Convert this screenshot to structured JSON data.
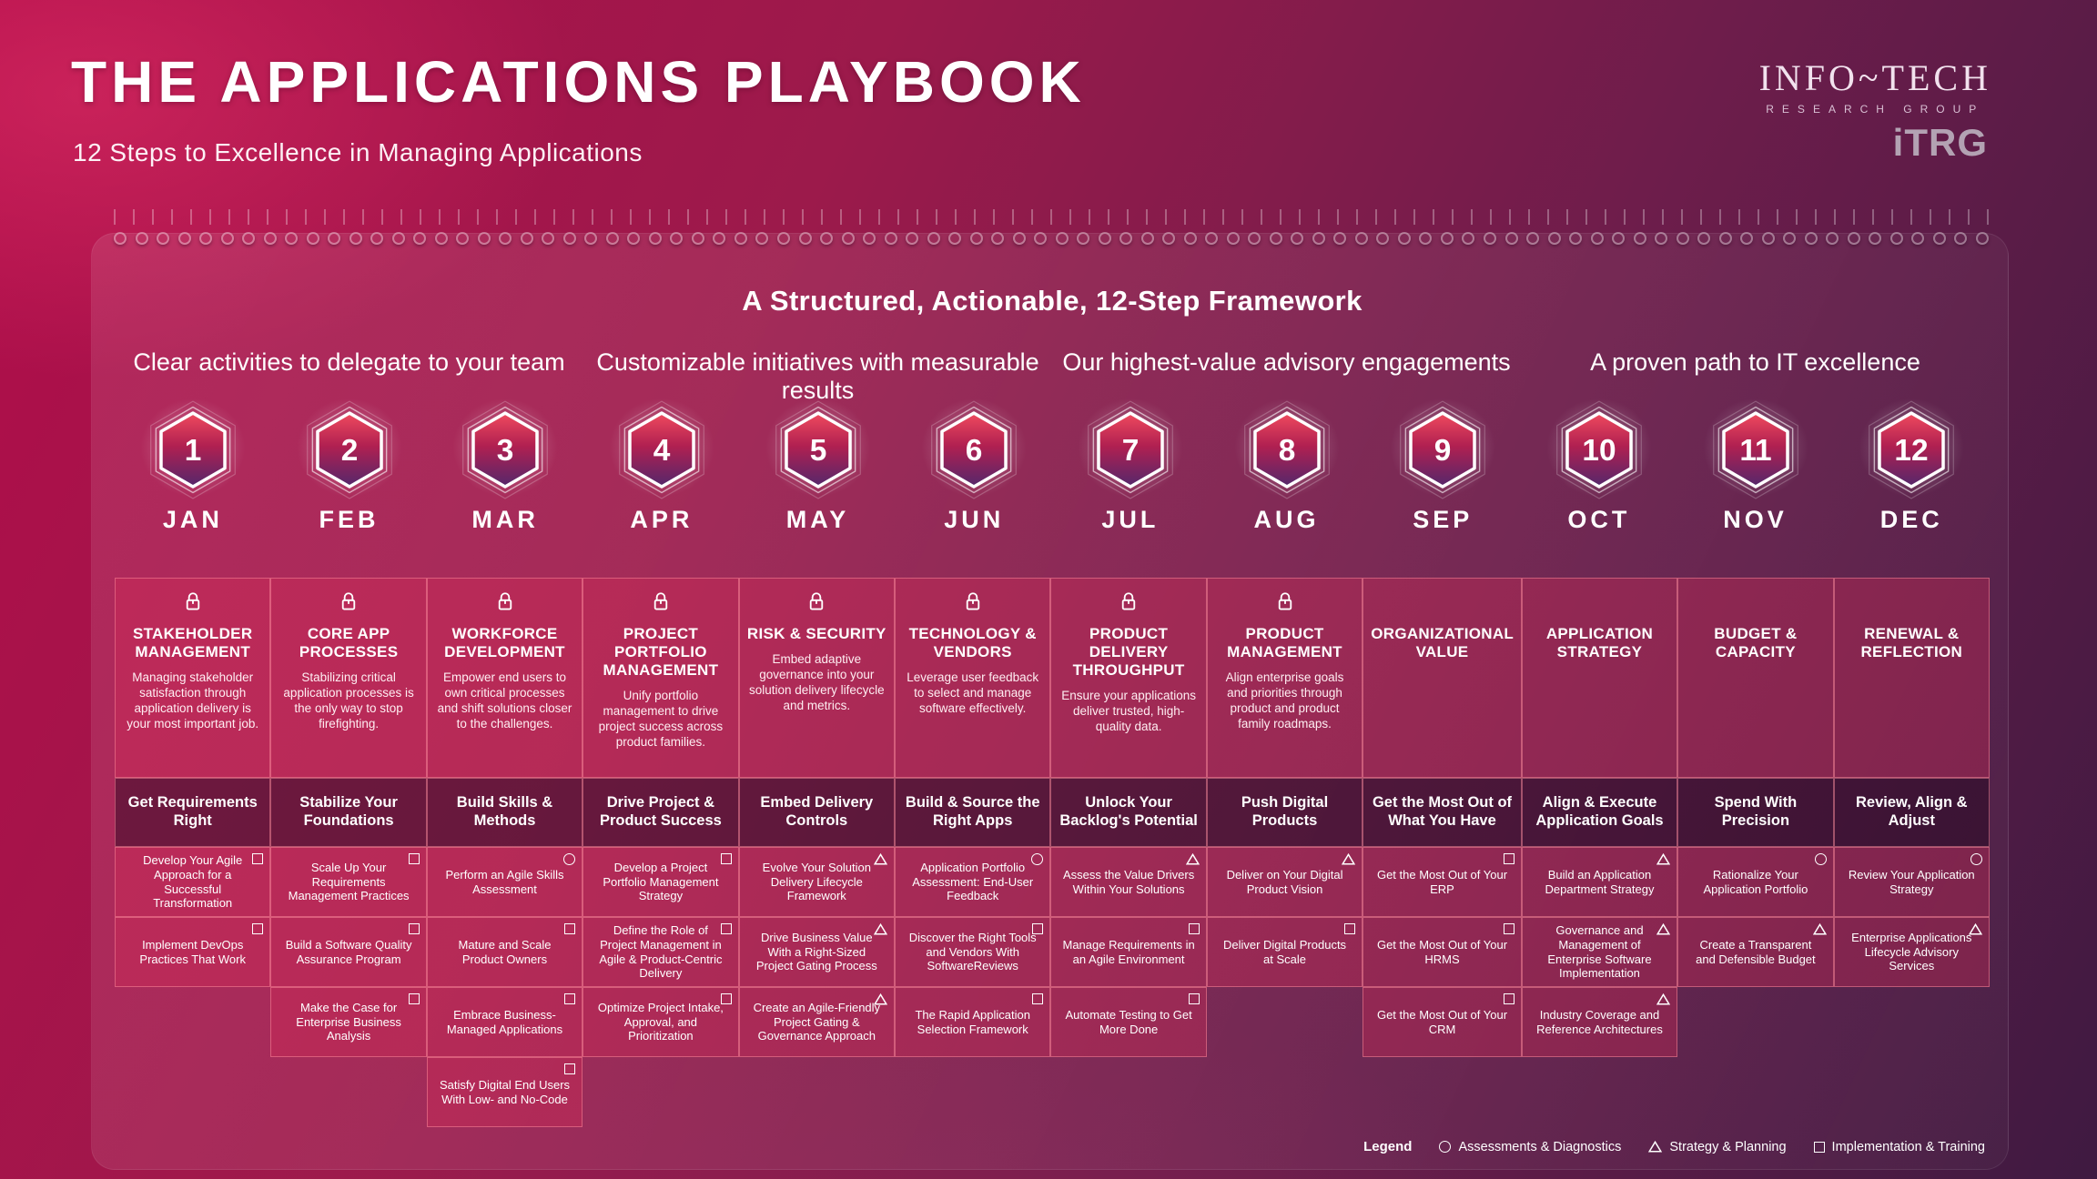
{
  "header": {
    "title": "THE APPLICATIONS PLAYBOOK",
    "subtitle": "12 Steps to Excellence in Managing Applications",
    "logo": {
      "name": "INFO~TECH",
      "sub": "RESEARCH GROUP",
      "abbr": "iTRG"
    }
  },
  "framework": {
    "title": "A Structured, Actionable, 12-Step Framework",
    "group_titles": [
      "Clear activities to delegate to your team",
      "Customizable initiatives with measurable results",
      "Our highest-value advisory engagements",
      "A proven path to IT excellence"
    ],
    "columns": [
      {
        "num": "1",
        "month": "JAN",
        "category": {
          "locked": true,
          "title": "STAKEHOLDER MANAGEMENT",
          "desc": "Managing stakeholder satisfaction through application delivery is your most important job."
        },
        "phase": "Get Requirements Right",
        "activities": [
          {
            "icon": "square",
            "text": "Develop Your Agile Approach for a Successful Transformation"
          },
          {
            "icon": "square",
            "text": "Implement DevOps Practices That Work"
          },
          null,
          null
        ]
      },
      {
        "num": "2",
        "month": "FEB",
        "category": {
          "locked": true,
          "title": "CORE APP PROCESSES",
          "desc": "Stabilizing critical application processes is the only way to stop firefighting."
        },
        "phase": "Stabilize Your Foundations",
        "activities": [
          {
            "icon": "square",
            "text": "Scale Up Your Requirements Management Practices"
          },
          {
            "icon": "square",
            "text": "Build a Software Quality Assurance Program"
          },
          {
            "icon": "square",
            "text": "Make the Case for Enterprise Business Analysis"
          },
          null
        ]
      },
      {
        "num": "3",
        "month": "MAR",
        "category": {
          "locked": true,
          "title": "WORKFORCE DEVELOPMENT",
          "desc": "Empower end users to own critical processes and shift solutions closer to the challenges."
        },
        "phase": "Build Skills & Methods",
        "activities": [
          {
            "icon": "circle",
            "text": "Perform an Agile Skills Assessment"
          },
          {
            "icon": "square",
            "text": "Mature and Scale Product Owners"
          },
          {
            "icon": "square",
            "text": "Embrace Business-Managed Applications"
          },
          {
            "icon": "square",
            "text": "Satisfy Digital End Users With Low- and No-Code"
          }
        ]
      },
      {
        "num": "4",
        "month": "APR",
        "category": {
          "locked": true,
          "title": "PROJECT PORTFOLIO MANAGEMENT",
          "desc": "Unify portfolio management to drive project success across product families."
        },
        "phase": "Drive Project & Product Success",
        "activities": [
          {
            "icon": "square",
            "text": "Develop a Project Portfolio Management Strategy"
          },
          {
            "icon": "square",
            "text": "Define the Role of Project Management in Agile & Product-Centric Delivery"
          },
          {
            "icon": "square",
            "text": "Optimize Project Intake, Approval, and Prioritization"
          },
          null
        ]
      },
      {
        "num": "5",
        "month": "MAY",
        "category": {
          "locked": true,
          "title": "RISK & SECURITY",
          "desc": "Embed adaptive governance into your solution delivery lifecycle and metrics."
        },
        "phase": "Embed Delivery Controls",
        "activities": [
          {
            "icon": "triangle",
            "text": "Evolve Your Solution Delivery Lifecycle Framework"
          },
          {
            "icon": "triangle",
            "text": "Drive Business Value With a Right-Sized Project Gating Process"
          },
          {
            "icon": "triangle",
            "text": "Create an Agile-Friendly Project Gating & Governance Approach"
          },
          null
        ]
      },
      {
        "num": "6",
        "month": "JUN",
        "category": {
          "locked": true,
          "title": "TECHNOLOGY & VENDORS",
          "desc": "Leverage user feedback to select and manage software effectively."
        },
        "phase": "Build & Source the Right Apps",
        "activities": [
          {
            "icon": "circle",
            "text": "Application Portfolio Assessment: End-User Feedback"
          },
          {
            "icon": "square",
            "text": "Discover the Right Tools and Vendors With SoftwareReviews"
          },
          {
            "icon": "square",
            "text": "The Rapid Application Selection Framework"
          },
          null
        ]
      },
      {
        "num": "7",
        "month": "JUL",
        "category": {
          "locked": true,
          "title": "PRODUCT DELIVERY THROUGHPUT",
          "desc": "Ensure your applications deliver trusted, high-quality data."
        },
        "phase": "Unlock Your Backlog's Potential",
        "activities": [
          {
            "icon": "triangle",
            "text": "Assess the Value Drivers Within Your Solutions"
          },
          {
            "icon": "square",
            "text": "Manage Requirements in an Agile Environment"
          },
          {
            "icon": "square",
            "text": "Automate Testing to Get More Done"
          },
          null
        ]
      },
      {
        "num": "8",
        "month": "AUG",
        "category": {
          "locked": true,
          "title": "PRODUCT MANAGEMENT",
          "desc": "Align enterprise goals and priorities through product and product family roadmaps."
        },
        "phase": "Push Digital Products",
        "activities": [
          {
            "icon": "triangle",
            "text": "Deliver on Your Digital Product Vision"
          },
          {
            "icon": "square",
            "text": "Deliver Digital Products at Scale"
          },
          null,
          null
        ]
      },
      {
        "num": "9",
        "month": "SEP",
        "category": {
          "locked": false,
          "title": "ORGANIZATIONAL VALUE",
          "desc": ""
        },
        "phase": "Get the Most Out of What You Have",
        "activities": [
          {
            "icon": "square",
            "text": "Get the Most Out of Your ERP"
          },
          {
            "icon": "square",
            "text": "Get the Most Out of Your HRMS"
          },
          {
            "icon": "square",
            "text": "Get the Most Out of Your CRM"
          },
          null
        ]
      },
      {
        "num": "10",
        "month": "OCT",
        "category": {
          "locked": false,
          "title": "APPLICATION STRATEGY",
          "desc": ""
        },
        "phase": "Align & Execute Application Goals",
        "activities": [
          {
            "icon": "triangle",
            "text": "Build an Application Department Strategy"
          },
          {
            "icon": "triangle",
            "text": "Governance and Management of Enterprise Software Implementation"
          },
          {
            "icon": "triangle",
            "text": "Industry Coverage and Reference Architectures"
          },
          null
        ]
      },
      {
        "num": "11",
        "month": "NOV",
        "category": {
          "locked": false,
          "title": "BUDGET & CAPACITY",
          "desc": ""
        },
        "phase": "Spend With Precision",
        "activities": [
          {
            "icon": "circle",
            "text": "Rationalize Your Application Portfolio"
          },
          {
            "icon": "triangle",
            "text": "Create a Transparent and Defensible Budget"
          },
          null,
          null
        ]
      },
      {
        "num": "12",
        "month": "DEC",
        "category": {
          "locked": false,
          "title": "RENEWAL & REFLECTION",
          "desc": ""
        },
        "phase": "Review, Align & Adjust",
        "activities": [
          {
            "icon": "circle",
            "text": "Review Your Application Strategy"
          },
          {
            "icon": "triangle",
            "text": "Enterprise Applications Lifecycle Advisory Services"
          },
          null,
          null
        ]
      }
    ]
  },
  "legend": {
    "label": "Legend",
    "items": [
      {
        "icon": "circle",
        "label": "Assessments & Diagnostics"
      },
      {
        "icon": "triangle",
        "label": "Strategy & Planning"
      },
      {
        "icon": "square",
        "label": "Implementation & Training"
      }
    ]
  },
  "colors": {
    "background_top": "#b00d4a",
    "background_bottom": "#3f1a41",
    "cell_red": "#a62549",
    "phase_row_dark": "#3a0f2e",
    "hex_gradient_top": "#f04a5e",
    "hex_gradient_bottom": "#54276b",
    "logo_gray": "#b3a2b3"
  }
}
